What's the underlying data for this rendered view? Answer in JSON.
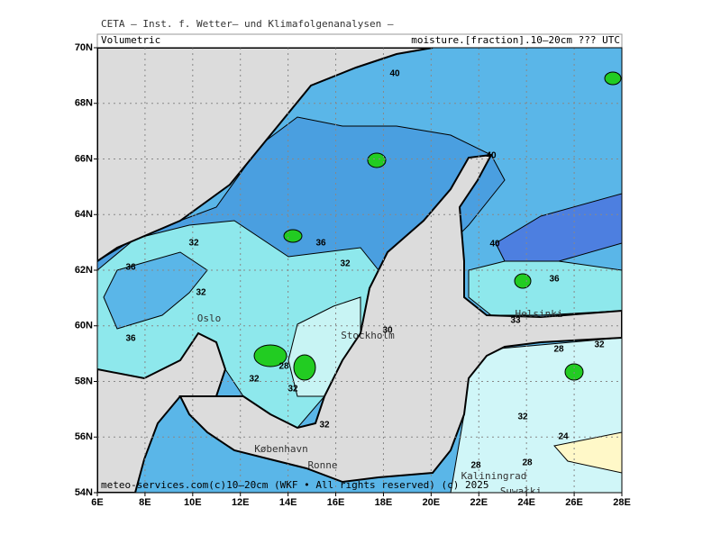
{
  "header": {
    "title": "CETA — Inst. f. Wetter— und Klimafolgenanalysen —",
    "left_label": "Volumetric",
    "right_label": "moisture.[fraction].10–20cm ??? UTC"
  },
  "map": {
    "lon_ticks": [
      {
        "value": 6,
        "label": "6E"
      },
      {
        "value": 8,
        "label": "8E"
      },
      {
        "value": 10,
        "label": "10E"
      },
      {
        "value": 12,
        "label": "12E"
      },
      {
        "value": 14,
        "label": "14E"
      },
      {
        "value": 16,
        "label": "16E"
      },
      {
        "value": 18,
        "label": "18E"
      },
      {
        "value": 20,
        "label": "20E"
      },
      {
        "value": 22,
        "label": "22E"
      },
      {
        "value": 24,
        "label": "24E"
      },
      {
        "value": 26,
        "label": "26E"
      },
      {
        "value": 28,
        "label": "28E"
      }
    ],
    "lat_ticks": [
      {
        "value": 54,
        "label": "54N"
      },
      {
        "value": 56,
        "label": "56N"
      },
      {
        "value": 58,
        "label": "58N"
      },
      {
        "value": 60,
        "label": "60N"
      },
      {
        "value": 62,
        "label": "62N"
      },
      {
        "value": 64,
        "label": "64N"
      },
      {
        "value": 66,
        "label": "66N"
      },
      {
        "value": 68,
        "label": "68N"
      },
      {
        "value": 70,
        "label": "70N"
      }
    ],
    "contour_labels": [
      "40",
      "40",
      "32",
      "36",
      "32",
      "36",
      "32",
      "36",
      "30",
      "40",
      "36",
      "33",
      "28",
      "32",
      "28",
      "32",
      "32",
      "32",
      "24",
      "28",
      "28",
      "32"
    ],
    "places": [
      "Oslo",
      "Stockholm",
      "Helsinki",
      "København",
      "Ronne",
      "Kaliningrad",
      "Suwałki"
    ]
  },
  "footer": "meteo-services.com(c)10–20cm (WKF • All rights reserved) (c) 2025"
}
